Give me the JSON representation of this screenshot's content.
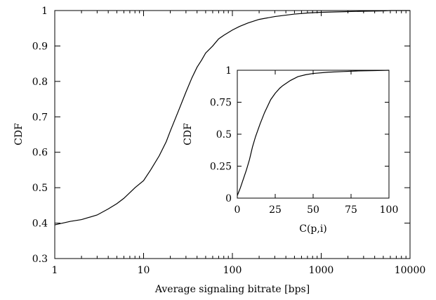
{
  "chart_data": [
    {
      "type": "line",
      "title": "",
      "xlabel": "Average signaling bitrate [bps]",
      "ylabel": "CDF",
      "xscale": "log",
      "xlim": [
        1,
        10000
      ],
      "ylim": [
        0.3,
        1.0
      ],
      "grid": false,
      "xticks": [
        1,
        10,
        100,
        1000,
        10000
      ],
      "xtick_labels": [
        "1",
        "10",
        "100",
        "1000",
        "10000"
      ],
      "yticks": [
        0.3,
        0.4,
        0.5,
        0.6,
        0.7,
        0.8,
        0.9,
        1.0
      ],
      "ytick_labels": [
        "0.3",
        "0.4",
        "0.5",
        "0.6",
        "0.7",
        "0.8",
        "0.9",
        "1"
      ],
      "series": [
        {
          "x": [
            1,
            1.5,
            2,
            3,
            4,
            5,
            6,
            8,
            10,
            12,
            15,
            18,
            20,
            25,
            30,
            35,
            40,
            45,
            50,
            60,
            70,
            80,
            100,
            120,
            150,
            200,
            300,
            400,
            500,
            700,
            1000,
            2000,
            3000,
            5000,
            6000,
            10000
          ],
          "y": [
            0.395,
            0.405,
            0.41,
            0.423,
            0.44,
            0.455,
            0.47,
            0.5,
            0.52,
            0.55,
            0.59,
            0.63,
            0.66,
            0.72,
            0.77,
            0.81,
            0.84,
            0.86,
            0.88,
            0.9,
            0.92,
            0.93,
            0.945,
            0.955,
            0.965,
            0.975,
            0.983,
            0.987,
            0.99,
            0.993,
            0.995,
            0.997,
            0.998,
            0.999,
            1.0,
            1.0
          ]
        }
      ]
    },
    {
      "type": "line",
      "title": "",
      "xlabel": "C(p,i)",
      "ylabel": "CDF",
      "xlim": [
        0,
        100
      ],
      "ylim": [
        0,
        1
      ],
      "grid": false,
      "xticks": [
        0,
        25,
        50,
        75,
        100
      ],
      "xtick_labels": [
        "0",
        "25",
        "50",
        "75",
        "100"
      ],
      "yticks": [
        0,
        0.25,
        0.5,
        0.75,
        1
      ],
      "ytick_labels": [
        "0",
        "0.25",
        "0.5",
        "0.75",
        "1"
      ],
      "series": [
        {
          "x": [
            0,
            1,
            2,
            4,
            6,
            8,
            10,
            12,
            15,
            18,
            20,
            22,
            25,
            28,
            30,
            35,
            40,
            45,
            50,
            60,
            70,
            80,
            90,
            100
          ],
          "y": [
            0.02,
            0.05,
            0.08,
            0.15,
            0.22,
            0.3,
            0.4,
            0.48,
            0.58,
            0.67,
            0.72,
            0.77,
            0.82,
            0.86,
            0.88,
            0.92,
            0.95,
            0.965,
            0.975,
            0.985,
            0.99,
            0.995,
            0.997,
            1.0
          ]
        }
      ]
    }
  ]
}
